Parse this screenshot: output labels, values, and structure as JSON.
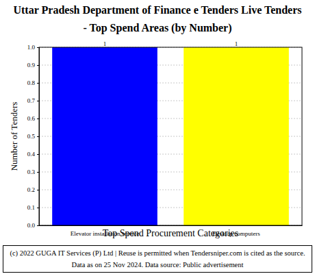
{
  "chart_data": {
    "type": "bar",
    "title": "Uttar Pradesh Department of Finance e Tenders Live Tenders - Top Spend Areas (by Number)",
    "x_label": "Top Spend Procurement Categories",
    "y_label": "Number of Tenders",
    "categories": [
      "Elevator installation service",
      "Desktop computers"
    ],
    "values": [
      1,
      1
    ],
    "colors": [
      "#0000ff",
      "#ffff00"
    ],
    "ylim": [
      0,
      1.0
    ],
    "yticks": [
      {
        "value": 0,
        "label": "0.0"
      },
      0.1,
      0.2,
      0.3,
      0.4,
      0.5,
      0.6,
      0.7,
      0.8,
      0.9,
      {
        "value": 1.0,
        "label": "1.0"
      }
    ],
    "grid": true,
    "data_labels": true,
    "footer": "(c) 2022 GUGA IT Services (P) Ltd | Reuse is permitted when Tendersniper.com is cited as the source. Data as on 25 Nov 2024. Data source: Public advertisement"
  }
}
